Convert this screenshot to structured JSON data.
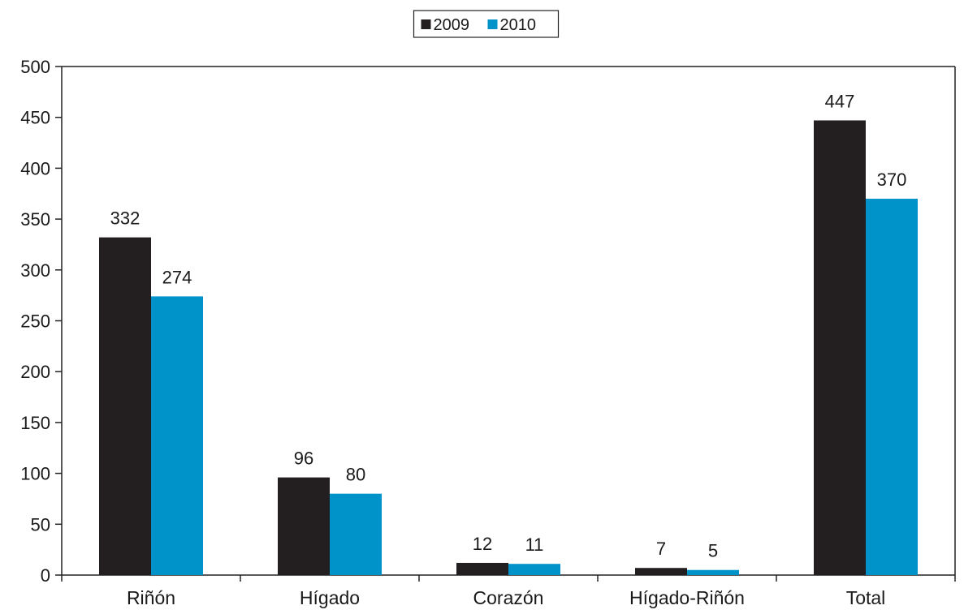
{
  "chart_data": {
    "type": "bar",
    "categories": [
      "Riñón",
      "Hígado",
      "Corazón",
      "Hígado-Riñón",
      "Total"
    ],
    "series": [
      {
        "name": "2009",
        "values": [
          332,
          96,
          12,
          7,
          447
        ],
        "color": "#231f20"
      },
      {
        "name": "2010",
        "values": [
          274,
          80,
          11,
          5,
          370
        ],
        "color": "#0093c9"
      }
    ],
    "ylim": [
      0,
      500
    ],
    "yticks": [
      0,
      50,
      100,
      150,
      200,
      250,
      300,
      350,
      400,
      450,
      500
    ],
    "grid": false,
    "legend": "top-center",
    "data_labels": true
  }
}
